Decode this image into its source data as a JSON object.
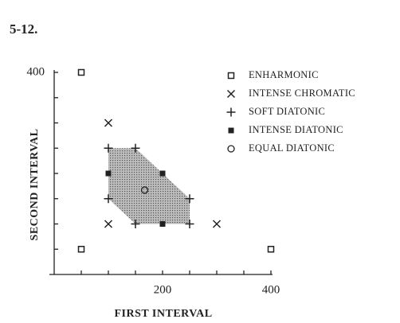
{
  "chart_data": {
    "type": "scatter",
    "title": "5-12.",
    "xlabel": "FIRST INTERVAL",
    "ylabel": "SECOND INTERVAL",
    "xlim": [
      0,
      400
    ],
    "ylim": [
      0,
      400
    ],
    "xticks": [
      200,
      400
    ],
    "yticks": [
      400
    ],
    "xminorticks": [
      50,
      100,
      150,
      200,
      250,
      300,
      350,
      400
    ],
    "yminorticks": [
      50,
      100,
      150,
      200,
      250,
      300,
      350,
      400
    ],
    "region": {
      "series": 2,
      "order": [
        0,
        1,
        3,
        5,
        4,
        2
      ],
      "color": "#bdbdbd"
    },
    "series": [
      {
        "name": "ENHARMONIC",
        "marker": "square-open",
        "color": "#222",
        "x": [
          50,
          50,
          400
        ],
        "values": [
          400,
          50,
          50
        ]
      },
      {
        "name": "INTENSE CHROMATIC",
        "marker": "x",
        "color": "#222",
        "x": [
          100,
          100,
          300
        ],
        "values": [
          300,
          100,
          100
        ]
      },
      {
        "name": "SOFT DIATONIC",
        "marker": "plus",
        "color": "#222",
        "x": [
          100,
          150,
          100,
          250,
          150,
          250
        ],
        "values": [
          250,
          250,
          150,
          150,
          100,
          100
        ]
      },
      {
        "name": "INTENSE DIATONIC",
        "marker": "square",
        "color": "#222",
        "x": [
          100,
          200,
          200
        ],
        "values": [
          200,
          200,
          100
        ]
      },
      {
        "name": "EQUAL DIATONIC",
        "marker": "circle-open",
        "color": "#222",
        "x": [
          167
        ],
        "values": [
          167
        ]
      }
    ]
  }
}
